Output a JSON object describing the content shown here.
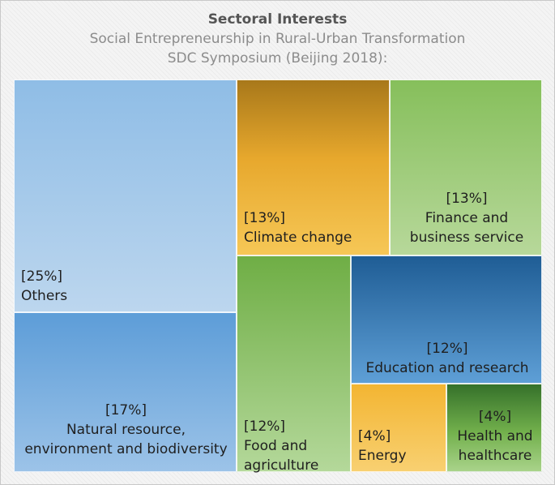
{
  "chart_data": {
    "type": "treemap",
    "title": "Sectoral Interests",
    "subtitle_lines": [
      "Social Entrepreneurship in Rural-Urban Transformation",
      "SDC Symposium (Beijing 2018):"
    ],
    "items": [
      {
        "name": "Others",
        "value": 25,
        "pct_label": "[25%]",
        "label_lines": [
          "Others"
        ],
        "color": "#a6cbeb"
      },
      {
        "name": "Climate change",
        "value": 13,
        "pct_label": "[13%]",
        "label_lines": [
          "Climate change"
        ],
        "color": "#e9a92e"
      },
      {
        "name": "Finance and business service",
        "value": 13,
        "pct_label": "[13%]",
        "label_lines": [
          "Finance and",
          "business service"
        ],
        "color": "#a2cd7c"
      },
      {
        "name": "Natural resource, environment and biodiversity",
        "value": 17,
        "pct_label": "[17%]",
        "label_lines": [
          "Natural resource,",
          "environment and biodiversity"
        ],
        "color": "#7cb0e0"
      },
      {
        "name": "Food and agriculture",
        "value": 12,
        "pct_label": "[12%]",
        "label_lines": [
          "Food and",
          "agriculture"
        ],
        "color": "#8cc268"
      },
      {
        "name": "Education and research",
        "value": 12,
        "pct_label": "[12%]",
        "label_lines": [
          "Education and research"
        ],
        "color": "#3d7fbf"
      },
      {
        "name": "Energy",
        "value": 4,
        "pct_label": "[4%]",
        "label_lines": [
          "Energy"
        ],
        "color": "#f5c14d"
      },
      {
        "name": "Health and healthcare",
        "value": 4,
        "pct_label": "[4%]",
        "label_lines": [
          "Health and",
          "healthcare"
        ],
        "color": "#5e9b3e"
      }
    ]
  }
}
